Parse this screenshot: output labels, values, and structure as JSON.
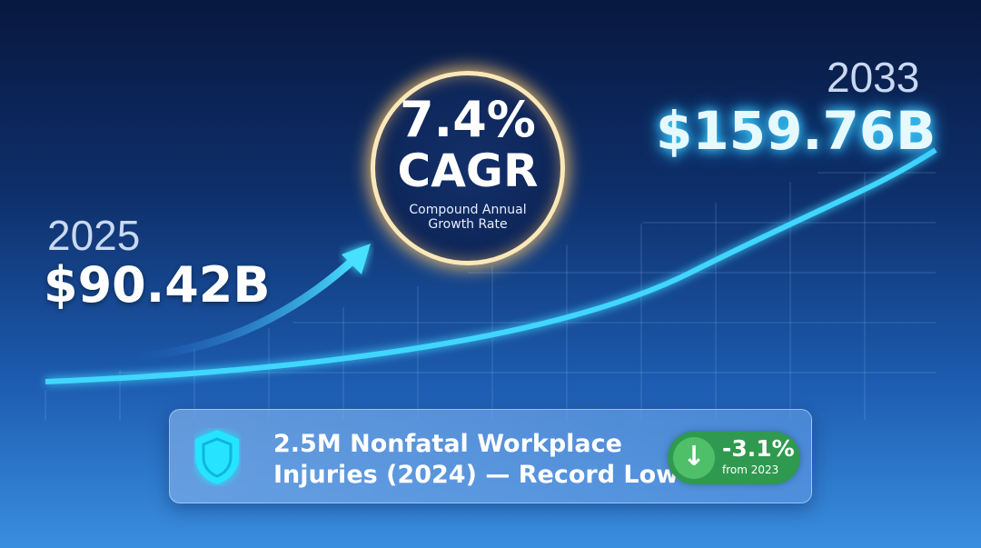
{
  "start": {
    "year": "2025",
    "value": "$90.42B"
  },
  "end": {
    "year": "2033",
    "value": "$159.76B"
  },
  "cagr": {
    "value": "7.4%",
    "label": "CAGR",
    "line1": "Compound Annual",
    "line2": "Growth Rate"
  },
  "callout": {
    "line1": "2.5M Nonfatal Workplace",
    "line2": "Injuries (2024) — Record Low",
    "change": "-3.1%",
    "change_note": "from 2023",
    "icon": "shield-icon",
    "change_icon": "arrow-down-icon"
  },
  "colors": {
    "curve": "#3fd6ff",
    "ring": "#fbe8b8",
    "badge": "#2f9a4f",
    "end_value": "#aee8ff"
  }
}
